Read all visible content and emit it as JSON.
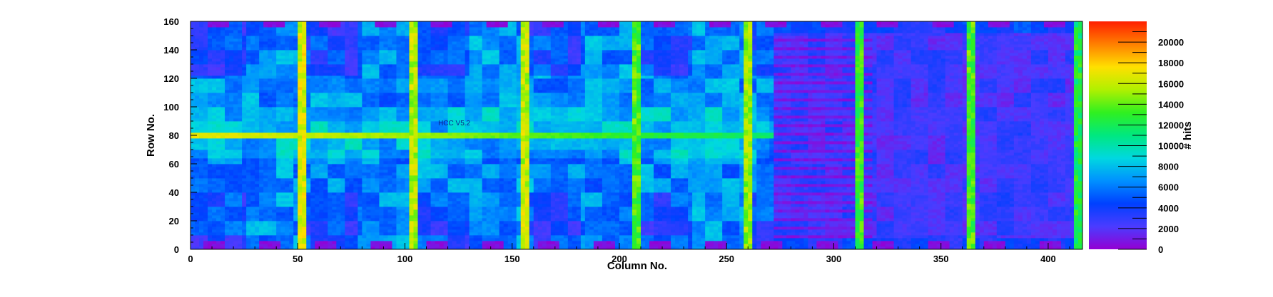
{
  "chart_data": {
    "type": "heatmap",
    "title": "",
    "xlabel": "Column No.",
    "ylabel": "Row No.",
    "zlabel": "# hits",
    "xlim": [
      0,
      416
    ],
    "ylim": [
      0,
      160
    ],
    "zlim": [
      0,
      22000
    ],
    "x_ticks": [
      0,
      50,
      100,
      150,
      200,
      250,
      300,
      350,
      400
    ],
    "y_ticks": [
      0,
      20,
      40,
      60,
      80,
      100,
      120,
      140,
      160
    ],
    "z_ticks": [
      0,
      2000,
      4000,
      6000,
      8000,
      10000,
      12000,
      14000,
      16000,
      18000,
      20000
    ],
    "colormap": [
      "#9400d3",
      "#4b3cff",
      "#0040ff",
      "#0090ff",
      "#00d8e0",
      "#00e880",
      "#30f020",
      "#b0f000",
      "#ffe000",
      "#ff8000",
      "#ff2000"
    ],
    "annotations": [
      "HCC V5.2"
    ],
    "grid": false,
    "features": {
      "hot_columns": [
        {
          "x": 52,
          "level": 16500
        },
        {
          "x": 104,
          "level": 15500
        },
        {
          "x": 156,
          "level": 16000
        },
        {
          "x": 208,
          "level": 13500
        },
        {
          "x": 260,
          "level": 15000
        },
        {
          "x": 312,
          "level": 13000
        },
        {
          "x": 364,
          "level": 13500
        },
        {
          "x": 414,
          "level": 12000
        }
      ],
      "hot_row": {
        "y": 80,
        "level": 17000
      },
      "low_region": {
        "x": [
          272,
          416
        ],
        "y": [
          8,
          152
        ],
        "level": 2500
      },
      "top_pads": {
        "y": [
          156,
          160
        ],
        "level": 500
      },
      "bottom_pads": {
        "y": [
          1,
          5
        ],
        "level": 500
      }
    }
  }
}
